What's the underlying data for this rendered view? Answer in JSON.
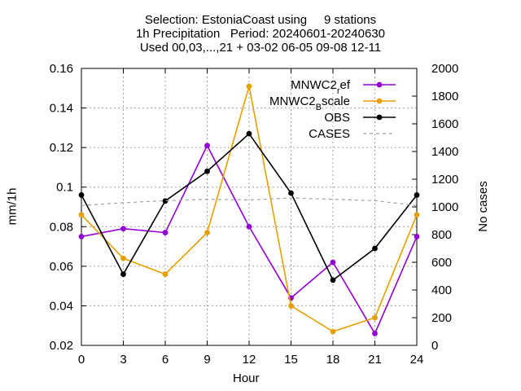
{
  "chart_data": {
    "type": "line",
    "title": [
      "Selection: EstoniaCoast using     9 stations",
      "1h Precipitation   Period: 20240601-20240630",
      "Used 00,03,...,21 + 03-02 06-05 09-08 12-11"
    ],
    "xlabel": "Hour",
    "ylabel": "mm/1h",
    "y2label": "No cases",
    "x": [
      0,
      3,
      6,
      9,
      12,
      15,
      18,
      21,
      24
    ],
    "xlim": [
      0,
      24
    ],
    "ylim": [
      0.02,
      0.16
    ],
    "y2lim": [
      0,
      2000
    ],
    "x_ticks": [
      "0",
      "3",
      "6",
      "9",
      "12",
      "15",
      "18",
      "21",
      "24"
    ],
    "y_ticks": [
      "0.02",
      "0.04",
      "0.06",
      "0.08",
      "0.1",
      "0.12",
      "0.14",
      "0.16"
    ],
    "y2_ticks": [
      "0",
      "200",
      "400",
      "600",
      "800",
      "1000",
      "1200",
      "1400",
      "1600",
      "1800",
      "2000"
    ],
    "grid": true,
    "legend_position": "top-right",
    "series": [
      {
        "name": "MNWC2",
        "sub": "r",
        "suffix": "ef",
        "color": "#9400d3",
        "axis": "y1",
        "values": [
          0.075,
          0.079,
          0.077,
          0.121,
          0.08,
          0.044,
          0.062,
          0.026,
          0.075
        ]
      },
      {
        "name": "MNWC2",
        "sub": "B",
        "suffix": "scale",
        "color": "#e69f00",
        "axis": "y1",
        "values": [
          0.086,
          0.064,
          0.056,
          0.077,
          0.151,
          0.04,
          0.027,
          0.034,
          0.086
        ]
      },
      {
        "name": "OBS",
        "sub": "",
        "suffix": "",
        "color": "#000000",
        "axis": "y1",
        "values": [
          0.096,
          0.056,
          0.093,
          0.108,
          0.127,
          0.097,
          0.053,
          0.069,
          0.096
        ]
      },
      {
        "name": "CASES",
        "sub": "",
        "suffix": "",
        "color": "#a0a0a0",
        "axis": "y2",
        "dashed": true,
        "values": [
          1010,
          1030,
          1045,
          1055,
          1050,
          1065,
          1055,
          1045,
          1010
        ]
      }
    ]
  }
}
